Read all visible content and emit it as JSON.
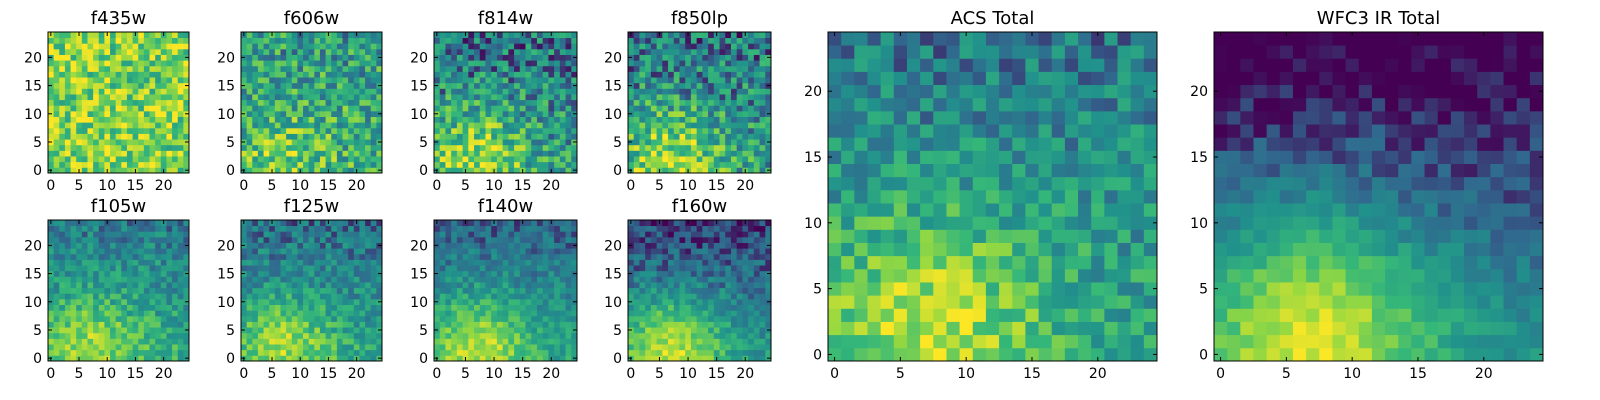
{
  "figure": {
    "colormap": "viridis",
    "colors": [
      "#440154",
      "#31688e",
      "#21918c",
      "#35b779",
      "#90d743",
      "#fde725"
    ]
  },
  "chart_data": [
    {
      "type": "heatmap",
      "title": "f435w",
      "grid_size": 25,
      "xlim": [
        0,
        24
      ],
      "ylim": [
        0,
        24
      ],
      "xticks": [
        0,
        5,
        10,
        15,
        20
      ],
      "yticks": [
        0,
        5,
        10,
        15,
        20
      ],
      "profile": {
        "base": 0.75,
        "blob": 0.05,
        "top_dark": 0.0,
        "noise": 0.28,
        "seed": 11
      }
    },
    {
      "type": "heatmap",
      "title": "f606w",
      "grid_size": 25,
      "xlim": [
        0,
        24
      ],
      "ylim": [
        0,
        24
      ],
      "xticks": [
        0,
        5,
        10,
        15,
        20
      ],
      "yticks": [
        0,
        5,
        10,
        15,
        20
      ],
      "profile": {
        "base": 0.55,
        "blob": 0.2,
        "top_dark": 0.1,
        "noise": 0.3,
        "seed": 23
      }
    },
    {
      "type": "heatmap",
      "title": "f814w",
      "grid_size": 25,
      "xlim": [
        0,
        24
      ],
      "ylim": [
        0,
        24
      ],
      "xticks": [
        0,
        5,
        10,
        15,
        20
      ],
      "yticks": [
        0,
        5,
        10,
        15,
        20
      ],
      "profile": {
        "base": 0.45,
        "blob": 0.4,
        "top_dark": 0.15,
        "noise": 0.3,
        "seed": 37
      }
    },
    {
      "type": "heatmap",
      "title": "f850lp",
      "grid_size": 25,
      "xlim": [
        0,
        24
      ],
      "ylim": [
        0,
        24
      ],
      "xticks": [
        0,
        5,
        10,
        15,
        20
      ],
      "yticks": [
        0,
        5,
        10,
        15,
        20
      ],
      "profile": {
        "base": 0.45,
        "blob": 0.4,
        "top_dark": 0.15,
        "noise": 0.3,
        "seed": 41
      }
    },
    {
      "type": "heatmap",
      "title": "f105w",
      "grid_size": 25,
      "xlim": [
        0,
        24
      ],
      "ylim": [
        0,
        24
      ],
      "xticks": [
        0,
        5,
        10,
        15,
        20
      ],
      "yticks": [
        0,
        5,
        10,
        15,
        20
      ],
      "profile": {
        "base": 0.55,
        "blob": 0.3,
        "top_dark": 0.25,
        "noise": 0.18,
        "seed": 53
      }
    },
    {
      "type": "heatmap",
      "title": "f125w",
      "grid_size": 25,
      "xlim": [
        0,
        24
      ],
      "ylim": [
        0,
        24
      ],
      "xticks": [
        0,
        5,
        10,
        15,
        20
      ],
      "yticks": [
        0,
        5,
        10,
        15,
        20
      ],
      "profile": {
        "base": 0.5,
        "blob": 0.35,
        "top_dark": 0.25,
        "noise": 0.18,
        "seed": 67
      }
    },
    {
      "type": "heatmap",
      "title": "f140w",
      "grid_size": 25,
      "xlim": [
        0,
        24
      ],
      "ylim": [
        0,
        24
      ],
      "xticks": [
        0,
        5,
        10,
        15,
        20
      ],
      "yticks": [
        0,
        5,
        10,
        15,
        20
      ],
      "profile": {
        "base": 0.5,
        "blob": 0.4,
        "top_dark": 0.3,
        "noise": 0.15,
        "seed": 79
      }
    },
    {
      "type": "heatmap",
      "title": "f160w",
      "grid_size": 25,
      "xlim": [
        0,
        24
      ],
      "ylim": [
        0,
        24
      ],
      "xticks": [
        0,
        5,
        10,
        15,
        20
      ],
      "yticks": [
        0,
        5,
        10,
        15,
        20
      ],
      "profile": {
        "base": 0.45,
        "blob": 0.45,
        "top_dark": 0.35,
        "noise": 0.15,
        "seed": 83
      }
    },
    {
      "type": "heatmap",
      "title": "ACS Total",
      "grid_size": 25,
      "xlim": [
        0,
        24
      ],
      "ylim": [
        0,
        24
      ],
      "xticks": [
        0,
        5,
        10,
        15,
        20
      ],
      "yticks": [
        0,
        5,
        10,
        15,
        20
      ],
      "profile": {
        "base": 0.5,
        "blob": 0.4,
        "top_dark": 0.2,
        "noise": 0.2,
        "seed": 97
      }
    },
    {
      "type": "heatmap",
      "title": "WFC3 IR Total",
      "grid_size": 25,
      "xlim": [
        0,
        24
      ],
      "ylim": [
        0,
        24
      ],
      "xticks": [
        0,
        5,
        10,
        15,
        20
      ],
      "yticks": [
        0,
        5,
        10,
        15,
        20
      ],
      "profile": {
        "base": 0.4,
        "blob": 0.55,
        "top_dark": 0.45,
        "noise": 0.1,
        "seed": 101
      }
    }
  ]
}
